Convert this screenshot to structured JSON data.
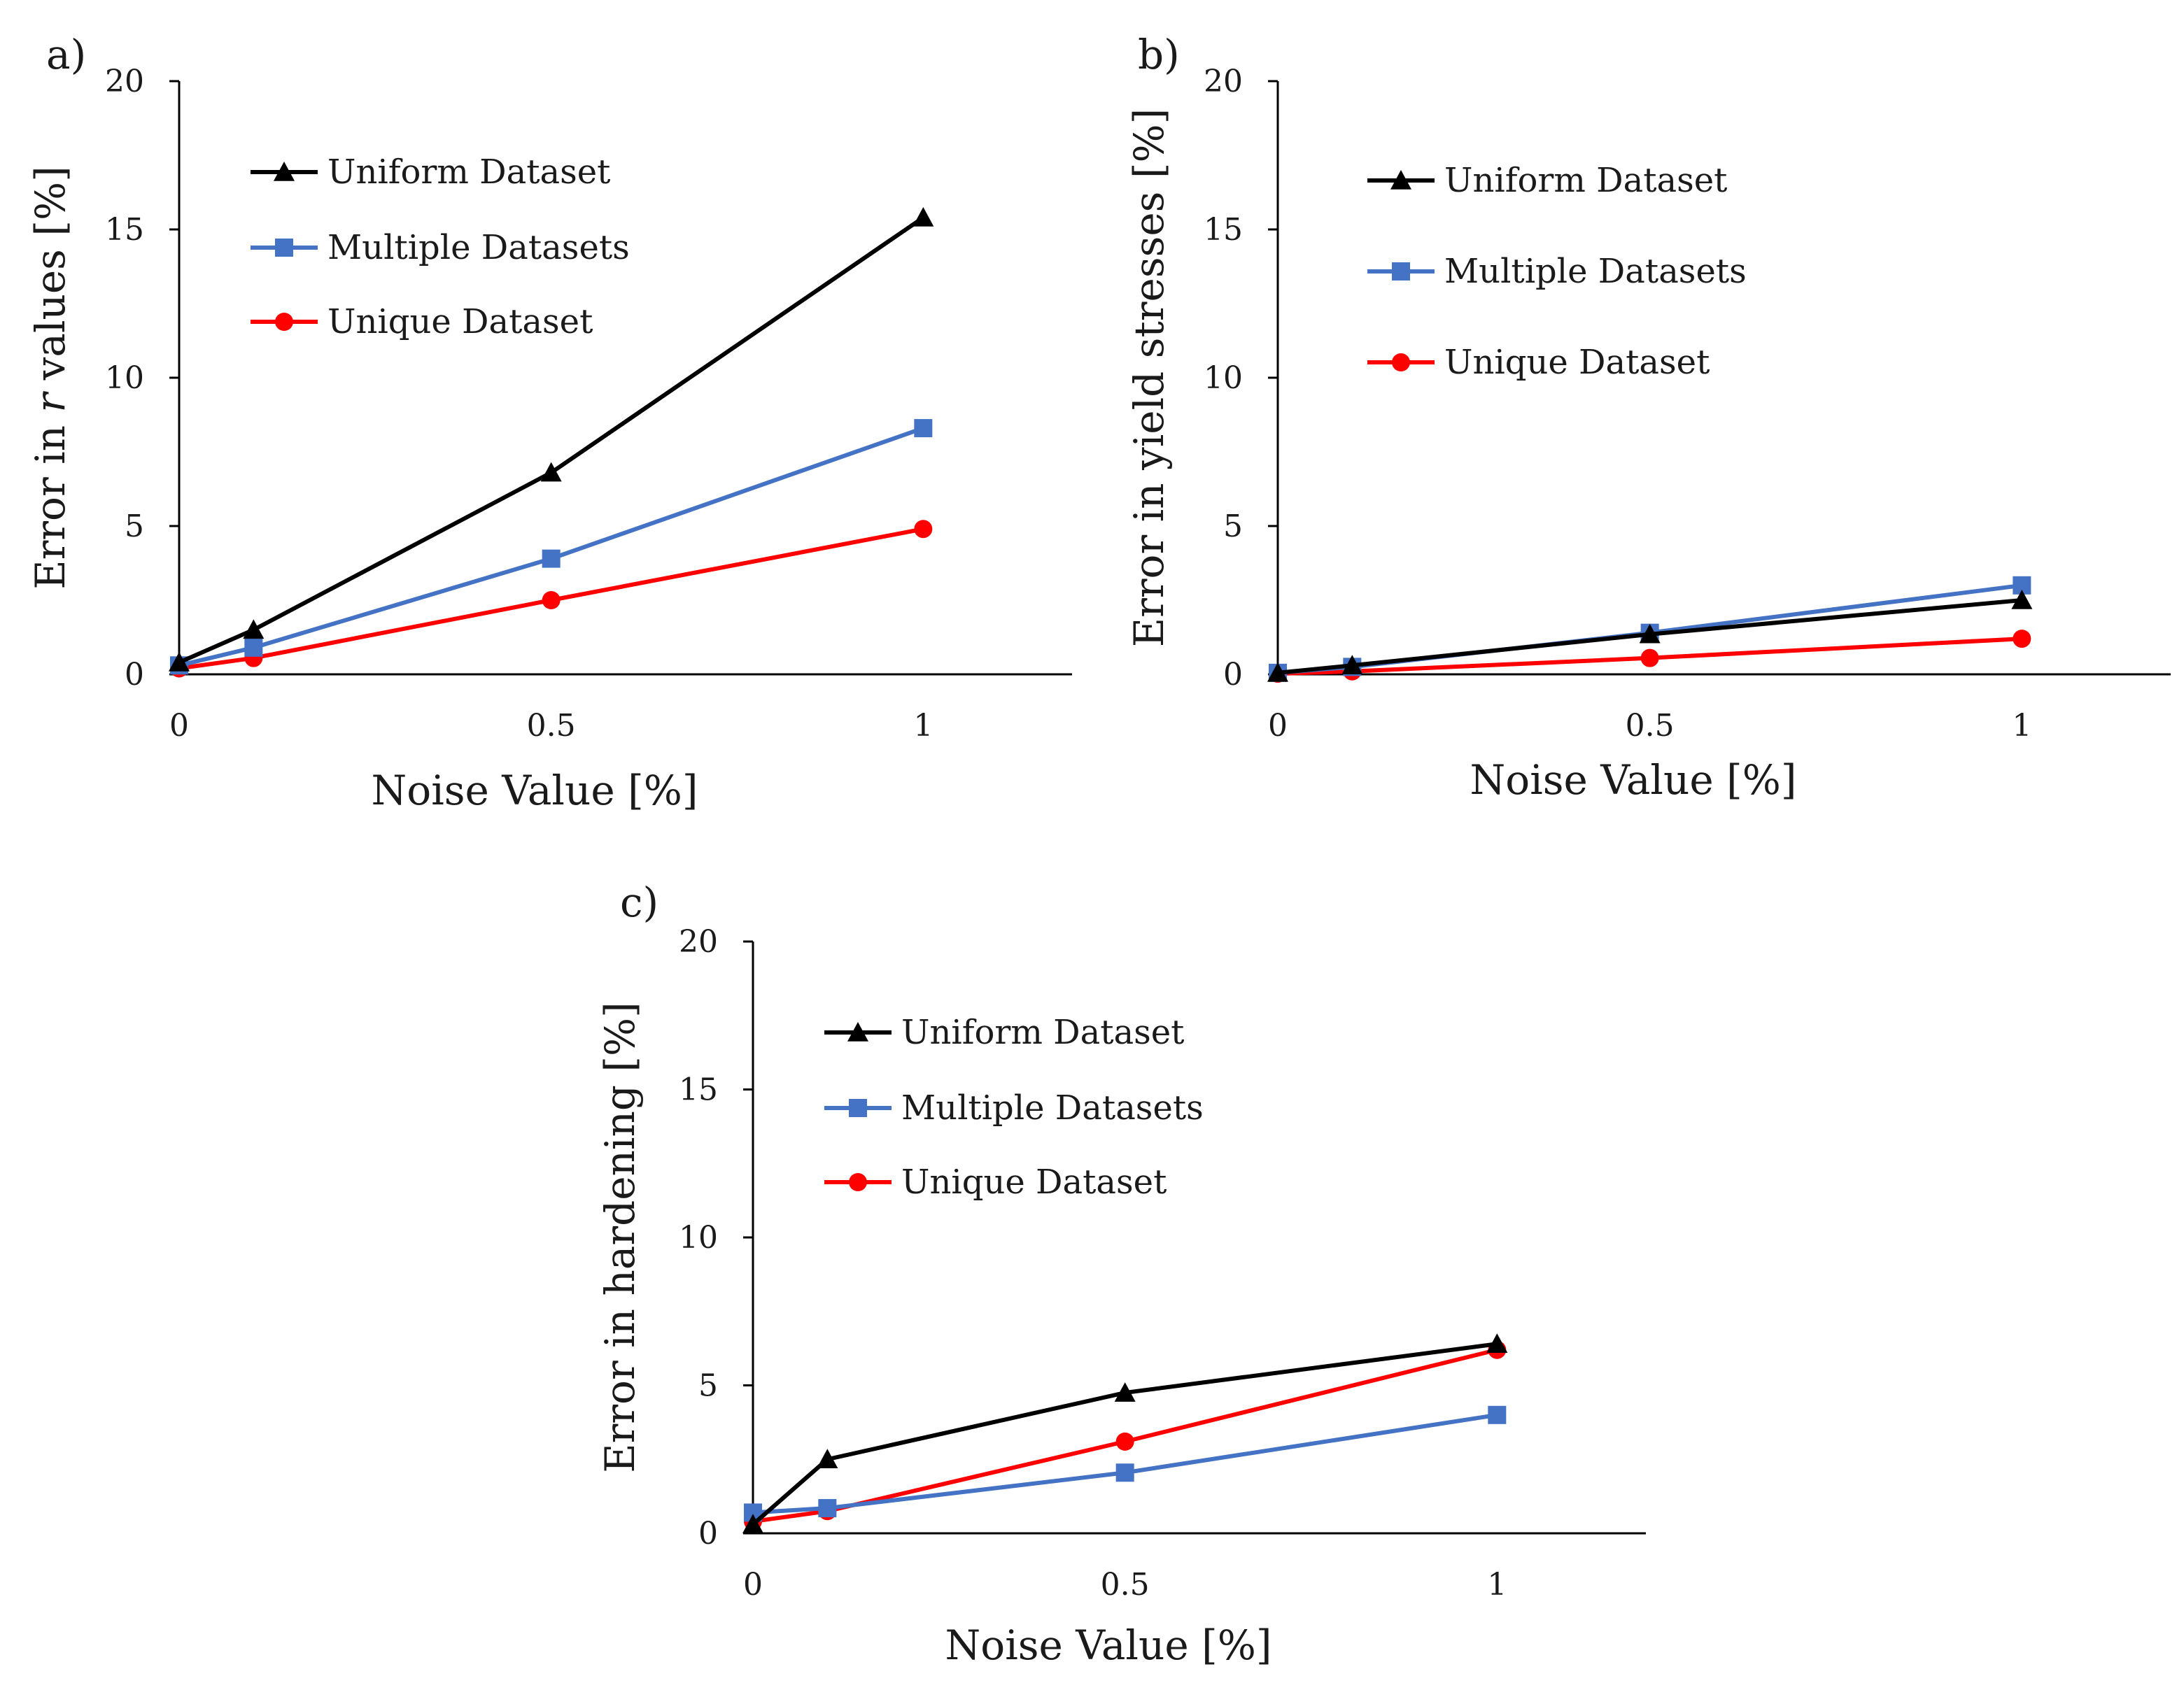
{
  "chart_data": [
    {
      "type": "line",
      "panel_label": "a)",
      "xlabel": "Noise Value [%]",
      "ylabel": {
        "prefix": "Error in ",
        "italic": "r",
        "suffix": " values [%]"
      },
      "x": [
        0,
        0.1,
        0.5,
        1
      ],
      "xlim": [
        0,
        1.2
      ],
      "ylim": [
        0,
        20
      ],
      "xticks": [
        0,
        0.5,
        1
      ],
      "xtick_labels": [
        "0",
        "0.5",
        "1"
      ],
      "yticks": [
        0,
        5,
        10,
        15,
        20
      ],
      "ytick_labels": [
        "0",
        "5",
        "10",
        "15",
        "20"
      ],
      "legend_position": "upper-left",
      "series": [
        {
          "name": "Uniform Dataset",
          "color": "#000000",
          "marker": "triangle",
          "values": [
            0.4,
            1.5,
            6.8,
            15.4
          ]
        },
        {
          "name": "Multiple Datasets",
          "color": "#4472C4",
          "marker": "square",
          "values": [
            0.3,
            0.9,
            3.9,
            8.3
          ]
        },
        {
          "name": "Unique Dataset",
          "color": "#FF0000",
          "marker": "circle",
          "values": [
            0.2,
            0.55,
            2.5,
            4.9
          ]
        }
      ]
    },
    {
      "type": "line",
      "panel_label": "b)",
      "xlabel": "Noise Value [%]",
      "ylabel": {
        "prefix": "Error in yield stresses [%]",
        "italic": "",
        "suffix": ""
      },
      "x": [
        0,
        0.1,
        0.5,
        1
      ],
      "xlim": [
        0,
        1.2
      ],
      "ylim": [
        0,
        20
      ],
      "xticks": [
        0,
        0.5,
        1
      ],
      "xtick_labels": [
        "0",
        "0.5",
        "1"
      ],
      "yticks": [
        0,
        5,
        10,
        15,
        20
      ],
      "ytick_labels": [
        "0",
        "5",
        "10",
        "15",
        "20"
      ],
      "legend_position": "upper-left",
      "series": [
        {
          "name": "Uniform Dataset",
          "color": "#000000",
          "marker": "triangle",
          "values": [
            0.05,
            0.3,
            1.35,
            2.5
          ]
        },
        {
          "name": "Multiple Datasets",
          "color": "#4472C4",
          "marker": "square",
          "values": [
            0.05,
            0.25,
            1.4,
            3.0
          ]
        },
        {
          "name": "Unique Dataset",
          "color": "#FF0000",
          "marker": "circle",
          "values": [
            0.02,
            0.1,
            0.55,
            1.2
          ]
        }
      ]
    },
    {
      "type": "line",
      "panel_label": "c)",
      "xlabel": "Noise Value [%]",
      "ylabel": {
        "prefix": "Error in hardening [%]",
        "italic": "",
        "suffix": ""
      },
      "x": [
        0,
        0.1,
        0.5,
        1
      ],
      "xlim": [
        0,
        1.2
      ],
      "ylim": [
        0,
        20
      ],
      "xticks": [
        0,
        0.5,
        1
      ],
      "xtick_labels": [
        "0",
        "0.5",
        "1"
      ],
      "yticks": [
        0,
        5,
        10,
        15,
        20
      ],
      "ytick_labels": [
        "0",
        "5",
        "10",
        "15",
        "20"
      ],
      "legend_position": "upper-left",
      "series": [
        {
          "name": "Uniform Dataset",
          "color": "#000000",
          "marker": "triangle",
          "values": [
            0.3,
            2.5,
            4.75,
            6.4
          ]
        },
        {
          "name": "Multiple Datasets",
          "color": "#4472C4",
          "marker": "square",
          "values": [
            0.7,
            0.85,
            2.05,
            4.0
          ]
        },
        {
          "name": "Unique Dataset",
          "color": "#FF0000",
          "marker": "circle",
          "values": [
            0.4,
            0.75,
            3.1,
            6.2
          ]
        }
      ]
    }
  ]
}
